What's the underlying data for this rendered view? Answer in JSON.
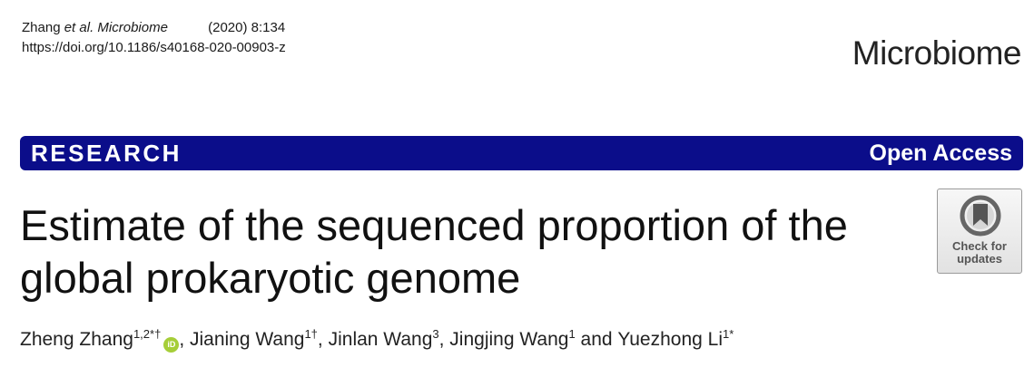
{
  "citation": {
    "authors_short": "Zhang",
    "et_al": "et al.",
    "journal": "Microbiome",
    "year_volume": "(2020) 8:134",
    "doi": "https://doi.org/10.1186/s40168-020-00903-z"
  },
  "brand": {
    "name": "Microbiome"
  },
  "banner": {
    "article_type": "RESEARCH",
    "access": "Open Access",
    "color": "#0b0d8a"
  },
  "title": "Estimate of the sequenced proportion of the global prokaryotic genome",
  "check_updates": {
    "label": "Check for updates",
    "icon": "bookmark-circle-icon"
  },
  "authors": [
    {
      "name": "Zheng Zhang",
      "sup": "1,2*†",
      "orcid": true
    },
    {
      "name": "Jianing Wang",
      "sup": "1†"
    },
    {
      "name": "Jinlan Wang",
      "sup": "3"
    },
    {
      "name": "Jingjing Wang",
      "sup": "1"
    },
    {
      "name": "Yuezhong Li",
      "sup": "1*"
    }
  ],
  "author_separator": ", ",
  "author_conjunction": "and",
  "orcid_icon": {
    "label": "iD",
    "color": "#a6ce39"
  }
}
